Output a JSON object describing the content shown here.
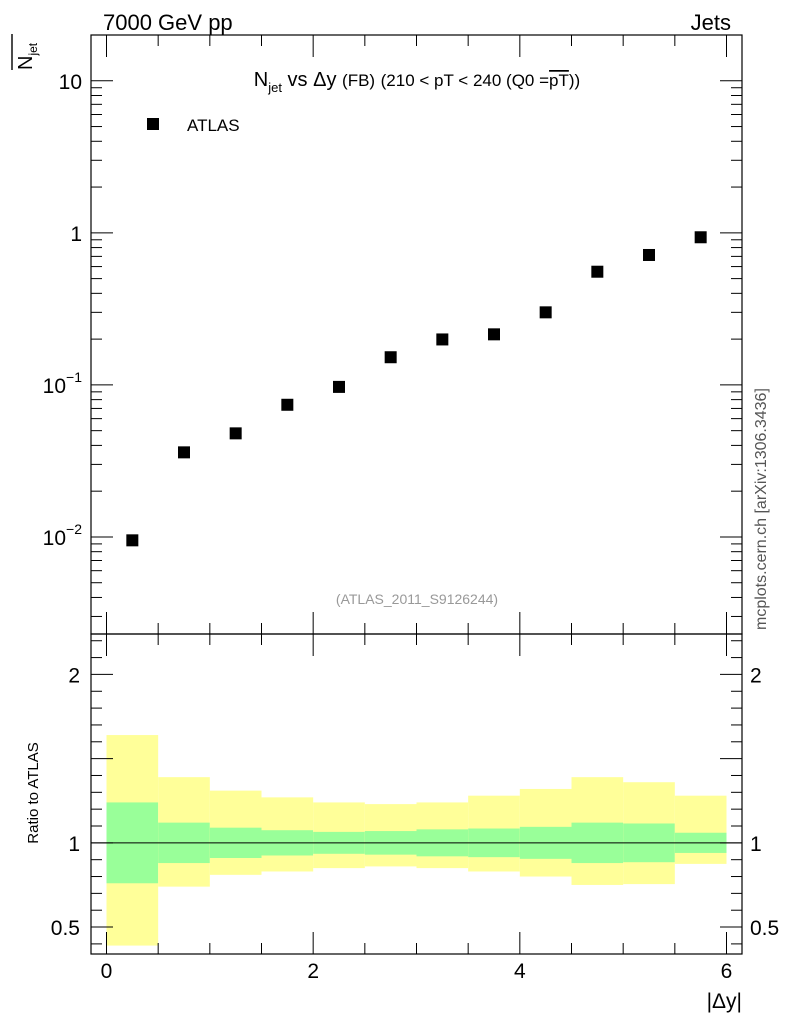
{
  "header": {
    "left_label": "7000 GeV pp",
    "right_label": "Jets"
  },
  "side_label": "mcplots.cern.ch [arXiv:1306.3436]",
  "watermark": "(ATLAS_2011_S9126244)",
  "chart_data": [
    {
      "type": "scatter",
      "title_parts": {
        "n": "N",
        "sub": "jet",
        "vs": "vs",
        "delta_y": "Δy",
        "fb": "(FB)",
        "range": "(210 < pT < 240 (Q0 =",
        "pt_bar": "pT",
        "close": "))"
      },
      "ylabel_parts": {
        "n": "N",
        "sub": "jet"
      },
      "yscale": "log",
      "ylim": [
        0.0023,
        20
      ],
      "xlim": [
        -0.15,
        6.15
      ],
      "legend": {
        "position": "top-left",
        "entries": [
          "ATLAS"
        ]
      },
      "series": [
        {
          "name": "ATLAS",
          "marker": "square",
          "color": "#000000",
          "x": [
            0.25,
            0.75,
            1.25,
            1.75,
            2.25,
            2.75,
            3.25,
            3.75,
            4.25,
            4.75,
            5.25,
            5.75
          ],
          "y": [
            0.0095,
            0.036,
            0.048,
            0.074,
            0.097,
            0.152,
            0.199,
            0.215,
            0.3,
            0.555,
            0.715,
            0.935
          ]
        }
      ],
      "y_ticks": [
        {
          "value": 0.01,
          "base": "10",
          "exp": "−2"
        },
        {
          "value": 0.1,
          "base": "10",
          "exp": "−1"
        },
        {
          "value": 1,
          "base": "1",
          "exp": ""
        },
        {
          "value": 10,
          "base": "10",
          "exp": ""
        }
      ]
    },
    {
      "type": "area",
      "ylabel": "Ratio to ATLAS",
      "xlabel": "|Δy|",
      "ylim": [
        0.34,
        2.24
      ],
      "xlim": [
        -0.15,
        6.15
      ],
      "y_ticks": [
        {
          "value": 0.5,
          "label": "0.5"
        },
        {
          "value": 1,
          "label": "1"
        },
        {
          "value": 2,
          "label": "2"
        }
      ],
      "x_ticks": [
        {
          "value": 0,
          "label": "0"
        },
        {
          "value": 2,
          "label": "2"
        },
        {
          "value": 4,
          "label": "4"
        },
        {
          "value": 6,
          "label": "6"
        }
      ],
      "reference_line": 1,
      "bands": {
        "bin_edges": [
          0,
          0.5,
          1,
          1.5,
          2,
          2.5,
          3,
          3.5,
          4,
          4.5,
          5,
          5.5,
          6
        ],
        "outer": {
          "color": "#ffff99",
          "lo": [
            0.39,
            0.74,
            0.81,
            0.83,
            0.85,
            0.86,
            0.85,
            0.83,
            0.8,
            0.75,
            0.755,
            0.875
          ],
          "hi": [
            1.64,
            1.39,
            1.31,
            1.27,
            1.24,
            1.23,
            1.24,
            1.28,
            1.32,
            1.39,
            1.36,
            1.28
          ]
        },
        "inner": {
          "color": "#99ff99",
          "lo": [
            0.76,
            0.88,
            0.91,
            0.925,
            0.935,
            0.93,
            0.92,
            0.915,
            0.905,
            0.88,
            0.885,
            0.94
          ]
        }
      }
    }
  ]
}
